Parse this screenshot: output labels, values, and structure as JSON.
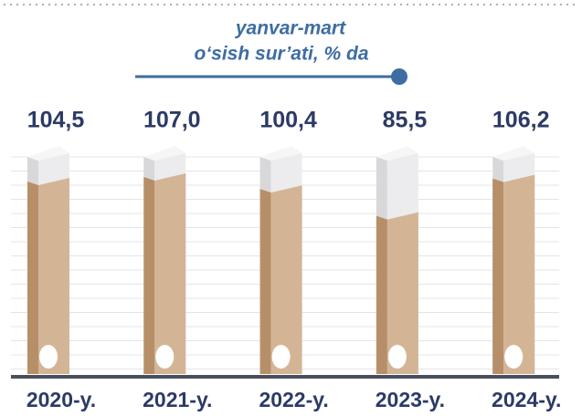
{
  "chart_data": {
    "type": "bar",
    "title": "yanvar-mart",
    "subtitle": "o‘sish sur’ati, % da",
    "categories": [
      "2020-y.",
      "2021-y.",
      "2022-y.",
      "2023-y.",
      "2024-y."
    ],
    "values": [
      104.5,
      107.0,
      100.4,
      85.5,
      106.2
    ],
    "value_labels": [
      "104,5",
      "107,0",
      "100,4",
      "85,5",
      "106,2"
    ],
    "color": "#d3b596"
  }
}
